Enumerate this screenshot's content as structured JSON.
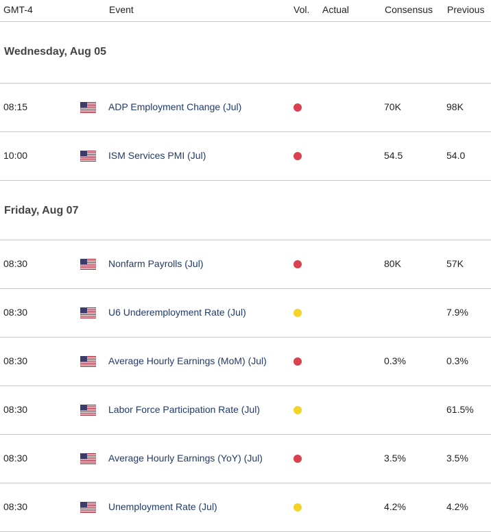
{
  "header": {
    "timezone": "GMT-4",
    "event": "Event",
    "vol": "Vol.",
    "actual": "Actual",
    "consensus": "Consensus",
    "previous": "Previous"
  },
  "colors": {
    "high": "#d9414f",
    "medium": "#f5d327",
    "flag_red": "#b22234",
    "flag_blue": "#3c3b6e"
  },
  "days": [
    {
      "label": "Wednesday, Aug 05",
      "events": [
        {
          "time": "08:15",
          "country_icon": "us-flag-icon",
          "event": "ADP Employment Change (Jul)",
          "volatility": "high",
          "actual": "",
          "consensus": "70K",
          "previous": "98K"
        },
        {
          "time": "10:00",
          "country_icon": "us-flag-icon",
          "event": "ISM Services PMI (Jul)",
          "volatility": "high",
          "actual": "",
          "consensus": "54.5",
          "previous": "54.0"
        }
      ]
    },
    {
      "label": "Friday, Aug 07",
      "events": [
        {
          "time": "08:30",
          "country_icon": "us-flag-icon",
          "event": "Nonfarm Payrolls (Jul)",
          "volatility": "high",
          "actual": "",
          "consensus": "80K",
          "previous": "57K"
        },
        {
          "time": "08:30",
          "country_icon": "us-flag-icon",
          "event": "U6 Underemployment Rate (Jul)",
          "volatility": "medium",
          "actual": "",
          "consensus": "",
          "previous": "7.9%"
        },
        {
          "time": "08:30",
          "country_icon": "us-flag-icon",
          "event": "Average Hourly Earnings (MoM) (Jul)",
          "volatility": "high",
          "actual": "",
          "consensus": "0.3%",
          "previous": "0.3%"
        },
        {
          "time": "08:30",
          "country_icon": "us-flag-icon",
          "event": "Labor Force Participation Rate (Jul)",
          "volatility": "medium",
          "actual": "",
          "consensus": "",
          "previous": "61.5%"
        },
        {
          "time": "08:30",
          "country_icon": "us-flag-icon",
          "event": "Average Hourly Earnings (YoY) (Jul)",
          "volatility": "high",
          "actual": "",
          "consensus": "3.5%",
          "previous": "3.5%"
        },
        {
          "time": "08:30",
          "country_icon": "us-flag-icon",
          "event": "Unemployment Rate (Jul)",
          "volatility": "medium",
          "actual": "",
          "consensus": "4.2%",
          "previous": "4.2%"
        }
      ]
    }
  ]
}
